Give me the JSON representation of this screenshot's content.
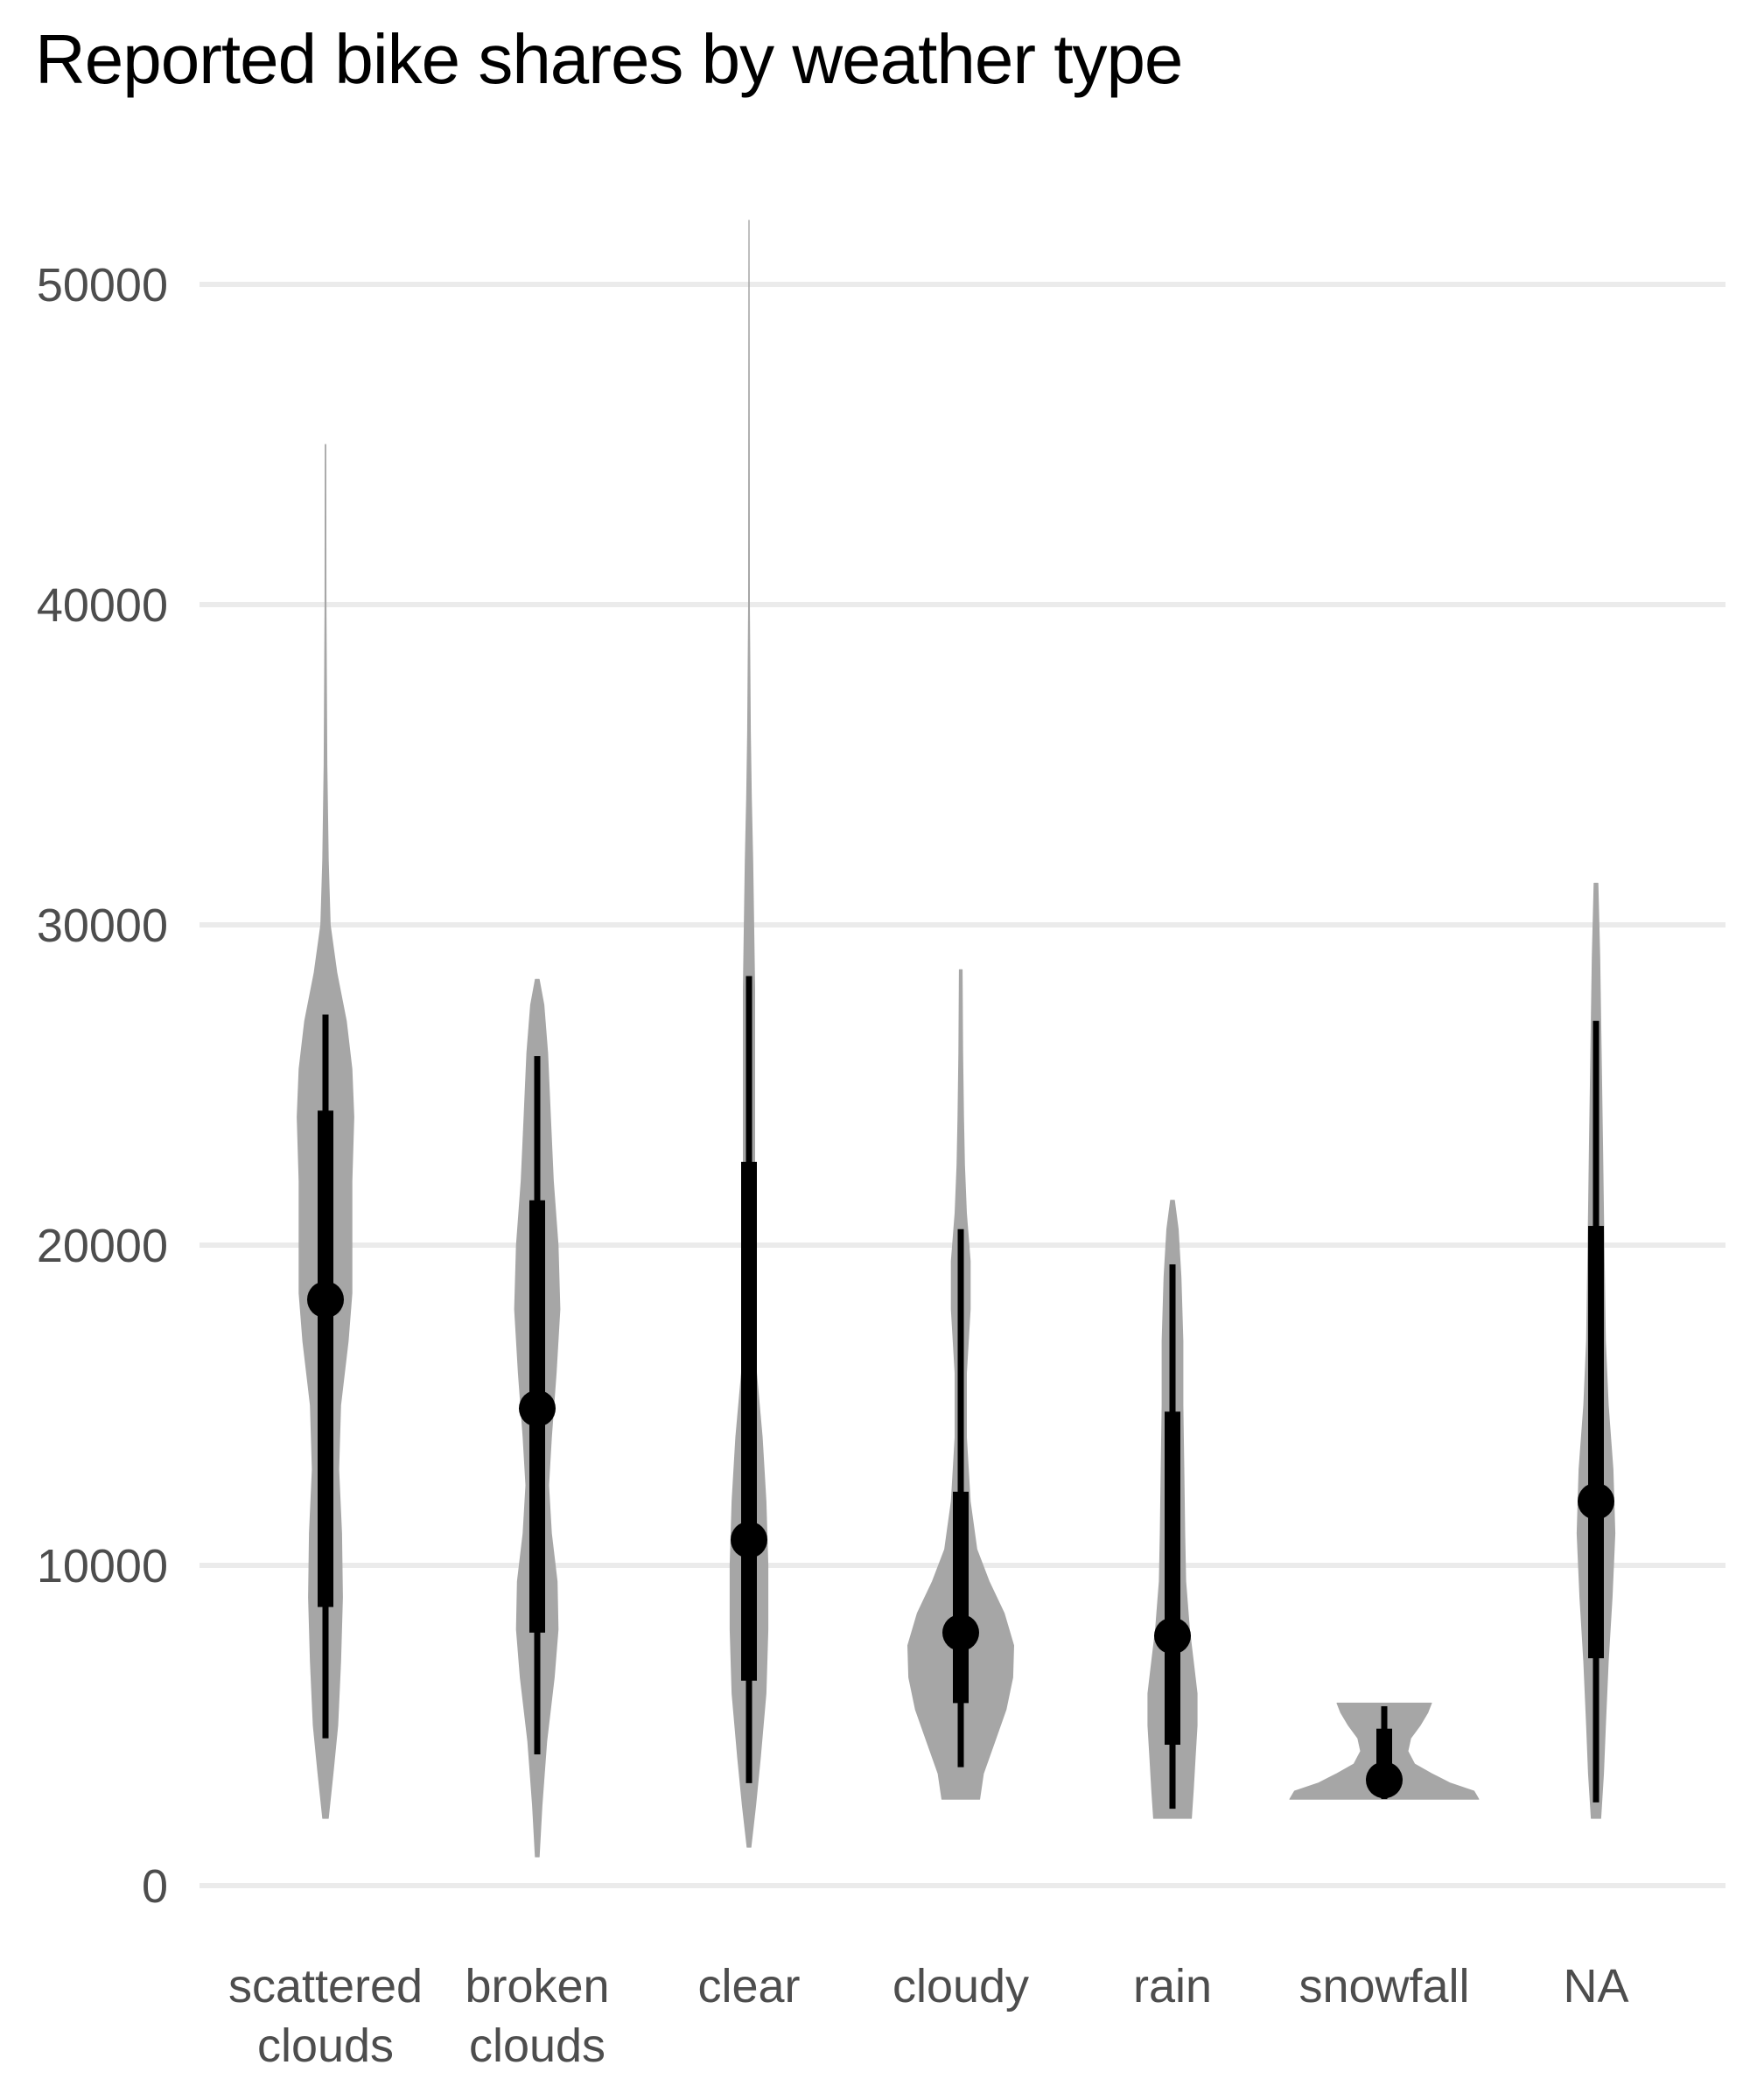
{
  "chart_data": {
    "type": "violin",
    "title": "Reported bike shares by weather type",
    "xlabel": "",
    "ylabel": "",
    "ylim": [
      0,
      52000
    ],
    "y_ticks": [
      0,
      10000,
      20000,
      30000,
      40000,
      50000
    ],
    "y_tick_labels": [
      "0",
      "10000",
      "20000",
      "30000",
      "40000",
      "50000"
    ],
    "grid": true,
    "legend": "none",
    "colors": {
      "violin": "#a6a6a6",
      "stats": "#000000",
      "grid": "#ebebeb",
      "tick_label": "#4d4d4d"
    },
    "categories": [
      {
        "label": [
          "scattered",
          "clouds"
        ],
        "median": 18300,
        "q1": 8700,
        "q3": 24200,
        "whisker_low": 4600,
        "whisker_high": 27200,
        "density": [
          [
            2100,
            0.03
          ],
          [
            3500,
            0.08
          ],
          [
            5000,
            0.13
          ],
          [
            7000,
            0.16
          ],
          [
            9000,
            0.18
          ],
          [
            11000,
            0.17
          ],
          [
            13000,
            0.14
          ],
          [
            15000,
            0.16
          ],
          [
            17000,
            0.24
          ],
          [
            18500,
            0.28
          ],
          [
            20000,
            0.28
          ],
          [
            22000,
            0.28
          ],
          [
            24000,
            0.3
          ],
          [
            25500,
            0.28
          ],
          [
            27000,
            0.22
          ],
          [
            28500,
            0.12
          ],
          [
            30000,
            0.05
          ],
          [
            32000,
            0.03
          ],
          [
            35000,
            0.015
          ],
          [
            40000,
            0.006
          ],
          [
            45000,
            0.004
          ]
        ]
      },
      {
        "label": [
          "broken",
          "clouds"
        ],
        "median": 14900,
        "q1": 7900,
        "q3": 21400,
        "whisker_low": 4100,
        "whisker_high": 25900,
        "density": [
          [
            900,
            0.02
          ],
          [
            2500,
            0.05
          ],
          [
            4500,
            0.1
          ],
          [
            6500,
            0.18
          ],
          [
            8000,
            0.22
          ],
          [
            9500,
            0.21
          ],
          [
            11000,
            0.15
          ],
          [
            12500,
            0.12
          ],
          [
            14000,
            0.15
          ],
          [
            16000,
            0.2
          ],
          [
            18000,
            0.24
          ],
          [
            20000,
            0.22
          ],
          [
            22000,
            0.17
          ],
          [
            24000,
            0.14
          ],
          [
            26000,
            0.11
          ],
          [
            27500,
            0.07
          ],
          [
            28300,
            0.02
          ]
        ]
      },
      {
        "label": [
          "clear"
        ],
        "median": 10800,
        "q1": 6400,
        "q3": 22600,
        "whisker_low": 3200,
        "whisker_high": 28400,
        "density": [
          [
            1200,
            0.02
          ],
          [
            2500,
            0.07
          ],
          [
            4000,
            0.12
          ],
          [
            6000,
            0.18
          ],
          [
            8000,
            0.2
          ],
          [
            10000,
            0.2
          ],
          [
            12000,
            0.18
          ],
          [
            14000,
            0.14
          ],
          [
            16000,
            0.08
          ],
          [
            18000,
            0.06
          ],
          [
            20000,
            0.06
          ],
          [
            22000,
            0.06
          ],
          [
            24000,
            0.06
          ],
          [
            26000,
            0.06
          ],
          [
            28000,
            0.06
          ],
          [
            30000,
            0.05
          ],
          [
            32000,
            0.04
          ],
          [
            34000,
            0.025
          ],
          [
            36000,
            0.015
          ],
          [
            40000,
            0.005
          ],
          [
            45000,
            0.004
          ],
          [
            52000,
            0.002
          ]
        ]
      },
      {
        "label": [
          "cloudy"
        ],
        "median": 7900,
        "q1": 5700,
        "q3": 12300,
        "whisker_low": 3700,
        "whisker_high": 20500,
        "density": [
          [
            2700,
            0.2
          ],
          [
            3500,
            0.24
          ],
          [
            4500,
            0.36
          ],
          [
            5500,
            0.48
          ],
          [
            6500,
            0.55
          ],
          [
            7500,
            0.56
          ],
          [
            8500,
            0.46
          ],
          [
            9500,
            0.3
          ],
          [
            10500,
            0.17
          ],
          [
            12000,
            0.1
          ],
          [
            14000,
            0.06
          ],
          [
            16000,
            0.06
          ],
          [
            18000,
            0.1
          ],
          [
            19500,
            0.1
          ],
          [
            21000,
            0.06
          ],
          [
            22500,
            0.04
          ],
          [
            24000,
            0.03
          ],
          [
            26000,
            0.02
          ],
          [
            28600,
            0.015
          ]
        ]
      },
      {
        "label": [
          "rain"
        ],
        "median": 7800,
        "q1": 4400,
        "q3": 14800,
        "whisker_low": 2400,
        "whisker_high": 19400,
        "density": [
          [
            2100,
            0.2
          ],
          [
            3000,
            0.22
          ],
          [
            4000,
            0.24
          ],
          [
            5000,
            0.26
          ],
          [
            6000,
            0.26
          ],
          [
            7000,
            0.22
          ],
          [
            8000,
            0.18
          ],
          [
            9500,
            0.14
          ],
          [
            11000,
            0.13
          ],
          [
            13000,
            0.12
          ],
          [
            15000,
            0.11
          ],
          [
            17000,
            0.11
          ],
          [
            19000,
            0.09
          ],
          [
            20500,
            0.06
          ],
          [
            21400,
            0.02
          ]
        ]
      },
      {
        "label": [
          "snowfall"
        ],
        "median": 3300,
        "q1": 2900,
        "q3": 4900,
        "whisker_low": 2700,
        "whisker_high": 5600,
        "density": [
          [
            2700,
            1.0
          ],
          [
            2950,
            0.95
          ],
          [
            3200,
            0.7
          ],
          [
            3500,
            0.5
          ],
          [
            3800,
            0.32
          ],
          [
            4200,
            0.25
          ],
          [
            4600,
            0.28
          ],
          [
            5000,
            0.38
          ],
          [
            5400,
            0.46
          ],
          [
            5700,
            0.5
          ]
        ]
      },
      {
        "label": [
          "NA"
        ],
        "median": 12000,
        "q1": 7100,
        "q3": 20600,
        "whisker_low": 2600,
        "whisker_high": 27000,
        "density": [
          [
            2100,
            0.05
          ],
          [
            3500,
            0.08
          ],
          [
            5000,
            0.1
          ],
          [
            7000,
            0.13
          ],
          [
            9000,
            0.17
          ],
          [
            11000,
            0.2
          ],
          [
            13000,
            0.18
          ],
          [
            15000,
            0.13
          ],
          [
            17000,
            0.1
          ],
          [
            19000,
            0.09
          ],
          [
            21000,
            0.08
          ],
          [
            23000,
            0.07
          ],
          [
            25000,
            0.06
          ],
          [
            27000,
            0.05
          ],
          [
            29000,
            0.04
          ],
          [
            31300,
            0.02
          ]
        ]
      }
    ]
  }
}
